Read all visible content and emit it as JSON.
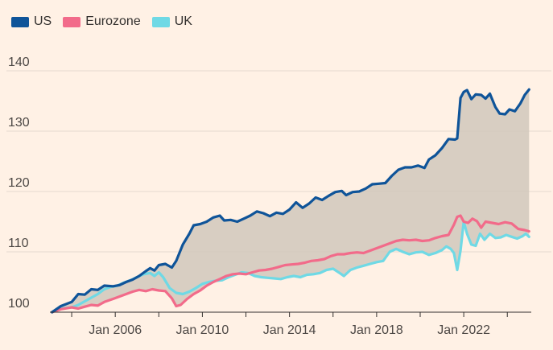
{
  "chart_data": {
    "type": "line",
    "title": "",
    "xlabel": "",
    "ylabel": "",
    "ylim": [
      100,
      143
    ],
    "xlim": [
      2003.0,
      2024.9
    ],
    "yticks": [
      100,
      110,
      120,
      130,
      140
    ],
    "xticks": [
      {
        "label": "Jan 2006",
        "value": 2006.0
      },
      {
        "label": "Jan 2010",
        "value": 2010.0
      },
      {
        "label": "Jan 2014",
        "value": 2014.0
      },
      {
        "label": "Jan 2018",
        "value": 2018.0
      },
      {
        "label": "Jan 2022",
        "value": 2022.0
      }
    ],
    "shaded_area": "between US and lower series",
    "series": [
      {
        "name": "US",
        "color": "#0f5499",
        "points": [
          [
            2003.1,
            100.0
          ],
          [
            2003.5,
            101.0
          ],
          [
            2004.0,
            101.7
          ],
          [
            2004.3,
            103.0
          ],
          [
            2004.6,
            102.9
          ],
          [
            2004.9,
            103.8
          ],
          [
            2005.2,
            103.7
          ],
          [
            2005.5,
            104.4
          ],
          [
            2005.9,
            104.3
          ],
          [
            2006.2,
            104.5
          ],
          [
            2006.5,
            105.0
          ],
          [
            2006.8,
            105.4
          ],
          [
            2007.1,
            106.0
          ],
          [
            2007.4,
            106.8
          ],
          [
            2007.6,
            107.3
          ],
          [
            2007.8,
            106.9
          ],
          [
            2008.0,
            107.8
          ],
          [
            2008.3,
            108.0
          ],
          [
            2008.6,
            107.4
          ],
          [
            2008.8,
            108.5
          ],
          [
            2009.1,
            111.2
          ],
          [
            2009.4,
            113.0
          ],
          [
            2009.6,
            114.4
          ],
          [
            2009.9,
            114.6
          ],
          [
            2010.2,
            115.0
          ],
          [
            2010.5,
            115.7
          ],
          [
            2010.8,
            116.0
          ],
          [
            2011.0,
            115.2
          ],
          [
            2011.3,
            115.3
          ],
          [
            2011.6,
            115.0
          ],
          [
            2011.9,
            115.5
          ],
          [
            2012.2,
            116.0
          ],
          [
            2012.5,
            116.7
          ],
          [
            2012.8,
            116.4
          ],
          [
            2013.1,
            115.9
          ],
          [
            2013.4,
            116.5
          ],
          [
            2013.7,
            116.3
          ],
          [
            2014.0,
            117.0
          ],
          [
            2014.3,
            118.2
          ],
          [
            2014.6,
            117.3
          ],
          [
            2014.9,
            118.0
          ],
          [
            2015.2,
            119.0
          ],
          [
            2015.5,
            118.6
          ],
          [
            2015.8,
            119.3
          ],
          [
            2016.1,
            119.9
          ],
          [
            2016.4,
            120.1
          ],
          [
            2016.6,
            119.4
          ],
          [
            2016.9,
            119.9
          ],
          [
            2017.2,
            120.0
          ],
          [
            2017.5,
            120.5
          ],
          [
            2017.8,
            121.2
          ],
          [
            2018.1,
            121.3
          ],
          [
            2018.4,
            121.4
          ],
          [
            2018.7,
            122.6
          ],
          [
            2019.0,
            123.6
          ],
          [
            2019.3,
            124.0
          ],
          [
            2019.6,
            124.0
          ],
          [
            2019.9,
            124.3
          ],
          [
            2020.2,
            123.9
          ],
          [
            2020.4,
            125.3
          ],
          [
            2020.7,
            126.0
          ],
          [
            2021.0,
            127.2
          ],
          [
            2021.3,
            128.7
          ],
          [
            2021.6,
            128.6
          ],
          [
            2021.7,
            128.8
          ],
          [
            2021.85,
            135.5
          ],
          [
            2022.0,
            136.5
          ],
          [
            2022.15,
            136.8
          ],
          [
            2022.35,
            135.3
          ],
          [
            2022.55,
            136.1
          ],
          [
            2022.8,
            136.0
          ],
          [
            2023.0,
            135.4
          ],
          [
            2023.2,
            136.2
          ],
          [
            2023.45,
            134.0
          ],
          [
            2023.65,
            132.9
          ],
          [
            2023.9,
            132.8
          ],
          [
            2024.1,
            133.6
          ],
          [
            2024.35,
            133.3
          ],
          [
            2024.6,
            134.6
          ],
          [
            2024.8,
            136.0
          ],
          [
            2025.0,
            136.9
          ]
        ]
      },
      {
        "name": "Eurozone",
        "color": "#f26b8a",
        "points": [
          [
            2003.1,
            100.0
          ],
          [
            2003.5,
            100.5
          ],
          [
            2004.0,
            100.8
          ],
          [
            2004.3,
            100.6
          ],
          [
            2004.6,
            100.9
          ],
          [
            2004.9,
            101.2
          ],
          [
            2005.2,
            101.1
          ],
          [
            2005.5,
            101.7
          ],
          [
            2005.9,
            102.2
          ],
          [
            2006.2,
            102.6
          ],
          [
            2006.5,
            103.0
          ],
          [
            2006.8,
            103.4
          ],
          [
            2007.1,
            103.7
          ],
          [
            2007.4,
            103.5
          ],
          [
            2007.7,
            103.8
          ],
          [
            2008.0,
            103.6
          ],
          [
            2008.3,
            103.5
          ],
          [
            2008.6,
            102.3
          ],
          [
            2008.8,
            101.0
          ],
          [
            2009.0,
            101.2
          ],
          [
            2009.3,
            102.2
          ],
          [
            2009.6,
            103.0
          ],
          [
            2009.9,
            103.6
          ],
          [
            2010.2,
            104.4
          ],
          [
            2010.5,
            105.0
          ],
          [
            2010.8,
            105.5
          ],
          [
            2011.1,
            106.0
          ],
          [
            2011.4,
            106.3
          ],
          [
            2011.7,
            106.4
          ],
          [
            2012.0,
            106.3
          ],
          [
            2012.3,
            106.6
          ],
          [
            2012.6,
            106.9
          ],
          [
            2012.9,
            107.0
          ],
          [
            2013.2,
            107.2
          ],
          [
            2013.5,
            107.5
          ],
          [
            2013.8,
            107.8
          ],
          [
            2014.1,
            107.9
          ],
          [
            2014.4,
            108.0
          ],
          [
            2014.7,
            108.2
          ],
          [
            2015.0,
            108.5
          ],
          [
            2015.3,
            108.6
          ],
          [
            2015.6,
            108.8
          ],
          [
            2015.9,
            109.3
          ],
          [
            2016.2,
            109.6
          ],
          [
            2016.5,
            109.6
          ],
          [
            2016.8,
            109.8
          ],
          [
            2017.1,
            109.9
          ],
          [
            2017.4,
            109.8
          ],
          [
            2017.7,
            110.2
          ],
          [
            2018.0,
            110.6
          ],
          [
            2018.3,
            111.0
          ],
          [
            2018.6,
            111.4
          ],
          [
            2018.9,
            111.8
          ],
          [
            2019.2,
            112.0
          ],
          [
            2019.5,
            111.9
          ],
          [
            2019.8,
            112.0
          ],
          [
            2020.1,
            111.8
          ],
          [
            2020.4,
            111.9
          ],
          [
            2020.7,
            112.3
          ],
          [
            2021.0,
            112.6
          ],
          [
            2021.3,
            112.8
          ],
          [
            2021.55,
            114.5
          ],
          [
            2021.7,
            115.8
          ],
          [
            2021.85,
            116.0
          ],
          [
            2022.0,
            115.0
          ],
          [
            2022.2,
            114.8
          ],
          [
            2022.4,
            115.5
          ],
          [
            2022.6,
            115.1
          ],
          [
            2022.8,
            114.0
          ],
          [
            2023.0,
            115.0
          ],
          [
            2023.3,
            114.8
          ],
          [
            2023.6,
            114.6
          ],
          [
            2023.9,
            114.9
          ],
          [
            2024.2,
            114.7
          ],
          [
            2024.5,
            113.8
          ],
          [
            2024.8,
            113.6
          ],
          [
            2025.0,
            113.4
          ]
        ]
      },
      {
        "name": "UK",
        "color": "#6fd9e5",
        "points": [
          [
            2003.1,
            100.0
          ],
          [
            2003.5,
            100.6
          ],
          [
            2004.0,
            100.8
          ],
          [
            2004.3,
            101.2
          ],
          [
            2004.6,
            101.8
          ],
          [
            2004.9,
            102.4
          ],
          [
            2005.2,
            103.0
          ],
          [
            2005.5,
            103.8
          ],
          [
            2005.8,
            104.2
          ],
          [
            2006.1,
            104.4
          ],
          [
            2006.4,
            104.9
          ],
          [
            2006.7,
            105.3
          ],
          [
            2007.0,
            105.8
          ],
          [
            2007.3,
            106.3
          ],
          [
            2007.6,
            106.5
          ],
          [
            2007.8,
            106.0
          ],
          [
            2008.0,
            106.6
          ],
          [
            2008.2,
            105.8
          ],
          [
            2008.5,
            104.0
          ],
          [
            2008.8,
            103.2
          ],
          [
            2009.1,
            103.0
          ],
          [
            2009.4,
            103.4
          ],
          [
            2009.7,
            104.0
          ],
          [
            2010.0,
            104.7
          ],
          [
            2010.3,
            105.0
          ],
          [
            2010.6,
            105.2
          ],
          [
            2010.9,
            105.3
          ],
          [
            2011.2,
            105.8
          ],
          [
            2011.5,
            106.2
          ],
          [
            2011.8,
            106.6
          ],
          [
            2012.1,
            106.5
          ],
          [
            2012.4,
            106.0
          ],
          [
            2012.7,
            105.8
          ],
          [
            2013.0,
            105.7
          ],
          [
            2013.3,
            105.6
          ],
          [
            2013.6,
            105.5
          ],
          [
            2013.9,
            105.8
          ],
          [
            2014.2,
            106.0
          ],
          [
            2014.5,
            105.8
          ],
          [
            2014.8,
            106.2
          ],
          [
            2015.1,
            106.3
          ],
          [
            2015.4,
            106.5
          ],
          [
            2015.7,
            107.0
          ],
          [
            2016.0,
            107.2
          ],
          [
            2016.3,
            106.5
          ],
          [
            2016.5,
            106.0
          ],
          [
            2016.8,
            107.0
          ],
          [
            2017.1,
            107.4
          ],
          [
            2017.4,
            107.7
          ],
          [
            2017.7,
            108.0
          ],
          [
            2018.0,
            108.3
          ],
          [
            2018.3,
            108.5
          ],
          [
            2018.6,
            110.0
          ],
          [
            2018.9,
            110.5
          ],
          [
            2019.2,
            110.0
          ],
          [
            2019.5,
            109.6
          ],
          [
            2019.8,
            109.9
          ],
          [
            2020.1,
            110.0
          ],
          [
            2020.4,
            109.5
          ],
          [
            2020.7,
            109.8
          ],
          [
            2021.0,
            110.3
          ],
          [
            2021.2,
            110.9
          ],
          [
            2021.4,
            110.5
          ],
          [
            2021.55,
            109.8
          ],
          [
            2021.7,
            107.0
          ],
          [
            2021.85,
            110.2
          ],
          [
            2022.0,
            115.0
          ],
          [
            2022.15,
            113.0
          ],
          [
            2022.35,
            111.2
          ],
          [
            2022.55,
            111.0
          ],
          [
            2022.75,
            113.0
          ],
          [
            2022.95,
            112.0
          ],
          [
            2023.2,
            113.0
          ],
          [
            2023.45,
            112.3
          ],
          [
            2023.7,
            112.4
          ],
          [
            2023.95,
            112.8
          ],
          [
            2024.2,
            112.5
          ],
          [
            2024.45,
            112.2
          ],
          [
            2024.7,
            112.6
          ],
          [
            2024.85,
            113.0
          ],
          [
            2025.0,
            112.5
          ]
        ]
      }
    ]
  }
}
